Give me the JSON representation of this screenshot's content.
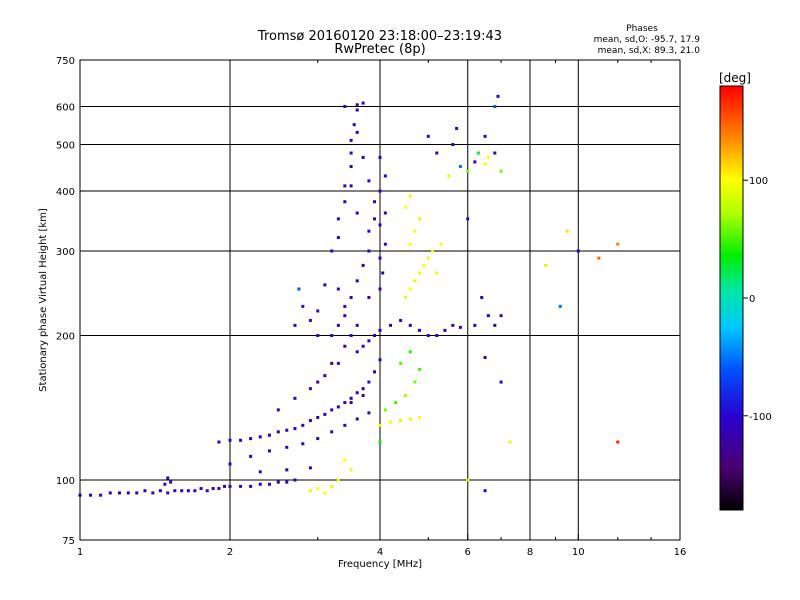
{
  "chart_data": {
    "type": "scatter",
    "title": "Tromsø 20160120 23:18:00–23:19:43",
    "subtitle": "RwPretec (8p)",
    "info": {
      "heading": "Phases",
      "line1": "mean, sd,O: -95.7, 17.9",
      "line2": "mean, sd,X:  89.3, 21.0"
    },
    "xlabel": "Frequency [MHz]",
    "ylabel": "Stationary phase Virtual Height [km]",
    "x_scale": "log",
    "y_scale": "log",
    "xlim": [
      1,
      16
    ],
    "ylim": [
      75,
      750
    ],
    "x_ticks": [
      {
        "value": 1,
        "label": "1"
      },
      {
        "value": 2,
        "label": "2"
      },
      {
        "value": 4,
        "label": "4"
      },
      {
        "value": 6,
        "label": "6"
      },
      {
        "value": 8,
        "label": "8"
      },
      {
        "value": 10,
        "label": "10"
      },
      {
        "value": 16,
        "label": "16"
      }
    ],
    "y_ticks": [
      {
        "value": 75,
        "label": "75"
      },
      {
        "value": 100,
        "label": "100"
      },
      {
        "value": 200,
        "label": "200"
      },
      {
        "value": 300,
        "label": "300"
      },
      {
        "value": 400,
        "label": "400"
      },
      {
        "value": 500,
        "label": "500"
      },
      {
        "value": 600,
        "label": "600"
      },
      {
        "value": 750,
        "label": "750"
      }
    ],
    "x_grid": [
      2,
      4,
      6,
      8,
      10
    ],
    "y_grid": [
      100,
      200,
      300,
      400,
      500,
      600
    ],
    "grid": true,
    "colorbar": {
      "unit": "[deg]",
      "range": [
        -180,
        180
      ],
      "ticks": [
        {
          "value": 100,
          "label": "100"
        },
        {
          "value": 0,
          "label": "0"
        },
        {
          "value": -100,
          "label": "-100"
        }
      ]
    },
    "series": [
      {
        "points": [
          [
            1.0,
            93,
            -110
          ],
          [
            1.05,
            93,
            -112
          ],
          [
            1.1,
            93,
            -108
          ],
          [
            1.15,
            94,
            -110
          ],
          [
            1.2,
            94,
            -105
          ],
          [
            1.25,
            94,
            -115
          ],
          [
            1.3,
            94,
            -110
          ],
          [
            1.35,
            95,
            -108
          ],
          [
            1.4,
            94,
            -112
          ],
          [
            1.45,
            95,
            -110
          ],
          [
            1.5,
            94,
            -106
          ],
          [
            1.55,
            95,
            -112
          ],
          [
            1.6,
            95,
            -110
          ],
          [
            1.65,
            95,
            -108
          ],
          [
            1.7,
            95,
            -112
          ],
          [
            1.75,
            96,
            -110
          ],
          [
            1.8,
            95,
            -108
          ],
          [
            1.85,
            96,
            -110
          ],
          [
            1.9,
            96,
            -114
          ],
          [
            1.95,
            97,
            -110
          ],
          [
            2.0,
            97,
            -108
          ],
          [
            2.1,
            97,
            -110
          ],
          [
            2.2,
            97,
            -112
          ],
          [
            2.3,
            98,
            -106
          ],
          [
            2.4,
            98,
            -110
          ],
          [
            2.5,
            99,
            -108
          ],
          [
            2.6,
            99,
            -112
          ],
          [
            2.7,
            100,
            -110
          ],
          [
            1.48,
            98,
            -112
          ],
          [
            1.5,
            101,
            -110
          ],
          [
            1.52,
            99,
            -112
          ]
        ]
      },
      {
        "points": [
          [
            1.9,
            120,
            -110
          ],
          [
            2.0,
            121,
            -112
          ],
          [
            2.1,
            121,
            -108
          ],
          [
            2.2,
            122,
            -110
          ],
          [
            2.3,
            123,
            -112
          ],
          [
            2.4,
            124,
            -108
          ],
          [
            2.5,
            126,
            -110
          ],
          [
            2.6,
            127,
            -112
          ],
          [
            2.7,
            128,
            -108
          ],
          [
            2.8,
            130,
            -110
          ],
          [
            2.9,
            133,
            -112
          ],
          [
            3.0,
            135,
            -110
          ],
          [
            3.1,
            137,
            -108
          ],
          [
            3.2,
            140,
            -112
          ],
          [
            3.3,
            142,
            -110
          ],
          [
            3.4,
            145,
            -108
          ],
          [
            3.5,
            148,
            -112
          ],
          [
            3.6,
            152,
            -110
          ],
          [
            3.7,
            155,
            -108
          ],
          [
            3.8,
            160,
            -110
          ],
          [
            3.9,
            168,
            -112
          ],
          [
            4.0,
            178,
            -110
          ]
        ]
      },
      {
        "points": [
          [
            2.0,
            108,
            -110
          ],
          [
            2.2,
            112,
            -108
          ],
          [
            2.4,
            115,
            -112
          ],
          [
            2.6,
            117,
            -110
          ],
          [
            2.8,
            119,
            -108
          ],
          [
            3.0,
            122,
            -112
          ],
          [
            3.2,
            126,
            -110
          ],
          [
            3.4,
            130,
            -108
          ],
          [
            3.6,
            134,
            -112
          ],
          [
            3.8,
            138,
            -110
          ],
          [
            2.3,
            104,
            -110
          ],
          [
            2.6,
            105,
            -112
          ],
          [
            2.9,
            106,
            -108
          ],
          [
            2.5,
            140,
            -110
          ],
          [
            2.7,
            148,
            -108
          ],
          [
            2.9,
            155,
            -112
          ],
          [
            3.1,
            165,
            -110
          ],
          [
            3.3,
            175,
            -108
          ]
        ]
      },
      {
        "points": [
          [
            2.7,
            210,
            -100
          ],
          [
            2.8,
            230,
            -90
          ],
          [
            2.75,
            250,
            -60
          ],
          [
            2.9,
            215,
            -95
          ],
          [
            3.0,
            200,
            -110
          ],
          [
            3.0,
            225,
            -95
          ],
          [
            3.1,
            255,
            -100
          ]
        ]
      },
      {
        "points": [
          [
            3.2,
            300,
            -110
          ],
          [
            3.3,
            320,
            -112
          ],
          [
            3.3,
            350,
            -108
          ],
          [
            3.4,
            380,
            -110
          ],
          [
            3.4,
            410,
            -112
          ],
          [
            3.5,
            450,
            -108
          ],
          [
            3.5,
            480,
            -110
          ],
          [
            3.5,
            510,
            -112
          ],
          [
            3.55,
            550,
            -115
          ],
          [
            3.6,
            590,
            -110
          ],
          [
            3.6,
            605,
            -112
          ],
          [
            3.7,
            610,
            -108
          ],
          [
            3.4,
            600,
            -110
          ],
          [
            3.3,
            250,
            -110
          ],
          [
            3.4,
            230,
            -112
          ],
          [
            3.5,
            240,
            -108
          ],
          [
            3.6,
            260,
            -110
          ],
          [
            3.7,
            280,
            -112
          ],
          [
            3.8,
            300,
            -108
          ],
          [
            3.8,
            330,
            -110
          ],
          [
            3.9,
            350,
            -112
          ],
          [
            3.9,
            380,
            -108
          ],
          [
            3.8,
            420,
            -110
          ],
          [
            3.7,
            470,
            -112
          ],
          [
            3.6,
            530,
            -108
          ],
          [
            3.5,
            410,
            -110
          ],
          [
            3.6,
            360,
            -112
          ]
        ]
      },
      {
        "points": [
          [
            3.2,
            200,
            -112
          ],
          [
            3.3,
            210,
            -110
          ],
          [
            3.4,
            220,
            -108
          ],
          [
            3.5,
            200,
            -112
          ],
          [
            3.6,
            185,
            -110
          ],
          [
            3.7,
            190,
            -108
          ],
          [
            3.8,
            195,
            -112
          ],
          [
            3.9,
            200,
            -110
          ],
          [
            4.0,
            205,
            -108
          ],
          [
            4.2,
            210,
            -110
          ],
          [
            4.4,
            215,
            -112
          ],
          [
            4.6,
            210,
            -110
          ],
          [
            4.8,
            205,
            -108
          ],
          [
            5.0,
            200,
            -112
          ],
          [
            5.2,
            200,
            -110
          ],
          [
            5.4,
            205,
            -108
          ],
          [
            5.6,
            210,
            -110
          ],
          [
            5.8,
            208,
            -112
          ]
        ]
      },
      {
        "points": [
          [
            4.0,
            290,
            -120
          ],
          [
            4.1,
            310,
            -115
          ],
          [
            4.0,
            340,
            -110
          ],
          [
            4.1,
            360,
            -120
          ],
          [
            4.0,
            400,
            -110
          ],
          [
            4.1,
            430,
            -115
          ],
          [
            4.0,
            470,
            -110
          ],
          [
            4.0,
            250,
            -112
          ],
          [
            4.05,
            270,
            -115
          ]
        ]
      },
      {
        "points": [
          [
            3.0,
            160,
            -130
          ],
          [
            3.2,
            175,
            -135
          ],
          [
            3.4,
            190,
            -140
          ],
          [
            3.6,
            210,
            -130
          ],
          [
            3.8,
            240,
            -135
          ],
          [
            3.5,
            145,
            -140
          ],
          [
            3.7,
            150,
            -130
          ]
        ]
      },
      {
        "points": [
          [
            4.0,
            130,
            90
          ],
          [
            4.2,
            132,
            95
          ],
          [
            4.4,
            133,
            85
          ],
          [
            4.6,
            134,
            90
          ],
          [
            4.8,
            135,
            100
          ],
          [
            4.1,
            140,
            60
          ],
          [
            4.3,
            145,
            50
          ],
          [
            4.5,
            150,
            70
          ],
          [
            4.7,
            160,
            60
          ],
          [
            4.8,
            170,
            50
          ],
          [
            4.0,
            120,
            40
          ],
          [
            4.4,
            175,
            55
          ],
          [
            4.6,
            185,
            45
          ]
        ]
      },
      {
        "points": [
          [
            4.5,
            240,
            95
          ],
          [
            4.6,
            250,
            100
          ],
          [
            4.7,
            260,
            90
          ],
          [
            4.8,
            270,
            95
          ],
          [
            4.9,
            280,
            100
          ],
          [
            5.0,
            290,
            90
          ],
          [
            5.1,
            300,
            95
          ],
          [
            4.6,
            310,
            100
          ],
          [
            4.7,
            330,
            95
          ],
          [
            4.8,
            350,
            90
          ],
          [
            4.5,
            370,
            100
          ],
          [
            4.6,
            390,
            95
          ],
          [
            5.2,
            270,
            90
          ],
          [
            5.3,
            310,
            95
          ]
        ]
      },
      {
        "points": [
          [
            2.9,
            95,
            90
          ],
          [
            3.0,
            96,
            100
          ],
          [
            3.1,
            94,
            95
          ],
          [
            3.2,
            97,
            90
          ],
          [
            3.3,
            100,
            95
          ],
          [
            3.4,
            110,
            100
          ],
          [
            3.5,
            105,
            90
          ]
        ]
      },
      {
        "points": [
          [
            5.8,
            450,
            -50
          ],
          [
            6.0,
            440,
            60
          ],
          [
            6.2,
            460,
            -110
          ],
          [
            6.3,
            480,
            30
          ],
          [
            6.5,
            455,
            95
          ],
          [
            6.6,
            470,
            100
          ],
          [
            6.8,
            480,
            -110
          ],
          [
            7.0,
            440,
            60
          ],
          [
            6.9,
            630,
            -110
          ],
          [
            6.8,
            600,
            -60
          ],
          [
            6.5,
            520,
            -110
          ]
        ]
      },
      {
        "points": [
          [
            6.2,
            210,
            -110
          ],
          [
            6.4,
            240,
            -120
          ],
          [
            6.6,
            220,
            -110
          ],
          [
            6.8,
            210,
            -100
          ],
          [
            6.5,
            180,
            -112
          ],
          [
            7.0,
            220,
            -120
          ]
        ]
      },
      {
        "points": [
          [
            5.0,
            520,
            -110
          ],
          [
            5.2,
            480,
            -120
          ],
          [
            5.5,
            430,
            90
          ],
          [
            5.6,
            500,
            -110
          ],
          [
            5.7,
            540,
            -108
          ]
        ]
      },
      {
        "points": [
          [
            6.0,
            100,
            80
          ],
          [
            6.5,
            95,
            -100
          ],
          [
            7.0,
            160,
            -110
          ],
          [
            6.0,
            350,
            -110
          ],
          [
            7.3,
            120,
            90
          ]
        ]
      },
      {
        "points": [
          [
            8.6,
            280,
            80
          ],
          [
            9.5,
            330,
            110
          ],
          [
            10.0,
            300,
            -100
          ],
          [
            11.0,
            290,
            150
          ],
          [
            12.0,
            310,
            140
          ],
          [
            12.0,
            120,
            170
          ],
          [
            9.2,
            230,
            -50
          ]
        ]
      }
    ]
  }
}
